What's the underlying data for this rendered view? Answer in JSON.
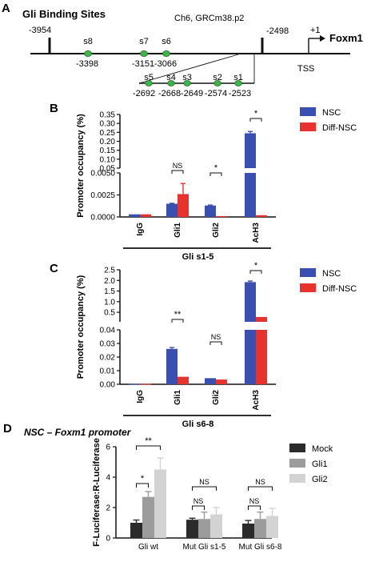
{
  "colors": {
    "blue": "#3a50b0",
    "red": "#e8322d",
    "black": "#2b2b2b",
    "gray": "#9c9c9c",
    "lightgray": "#d3d3d3",
    "green": "#3fb44a"
  },
  "panelA": {
    "letter": "A",
    "title": "Gli Binding Sites",
    "assembly": "Ch6, GRCm38.p2",
    "gene": "Foxm1",
    "plus_one": "+1",
    "tss": "TSS",
    "pos_left": "-3954",
    "pos_right": "-2498",
    "sites_upper": [
      {
        "name": "s8",
        "pos": "-3398"
      },
      {
        "name": "s7",
        "pos": "-3151"
      },
      {
        "name": "s6",
        "pos": "-3066"
      }
    ],
    "sites_lower": [
      {
        "name": "s5",
        "pos": "-2692"
      },
      {
        "name": "s4",
        "pos": "-2668"
      },
      {
        "name": "s3",
        "pos": "-2649"
      },
      {
        "name": "s2",
        "pos": "-2574"
      },
      {
        "name": "s1",
        "pos": "-2523"
      }
    ]
  },
  "chart_data": [
    {
      "panel": "B",
      "type": "bar",
      "ylabel": "Promoter occupancy (%)",
      "group_label": "Gli s1-5",
      "categories": [
        "IgG",
        "Gli1",
        "Gli2",
        "AcH3"
      ],
      "series": [
        {
          "name": "NSC",
          "values": [
            0.0003,
            0.0015,
            0.0013,
            0.245
          ],
          "errors": [
            0.0,
            5e-05,
            5e-05,
            0.01
          ]
        },
        {
          "name": "Diff-NSC",
          "values": [
            0.0003,
            0.0026,
            0.0001,
            0.0002
          ],
          "errors": [
            0.0,
            0.0012,
            0.0,
            0.0
          ]
        }
      ],
      "yticks_lower": [
        "0.0000",
        "0.0025",
        "0.0050"
      ],
      "yticks_upper": [
        "0.05",
        "0.10",
        "0.15",
        "0.20",
        "0.25",
        "0.30",
        "0.35"
      ],
      "y_break": [
        0.005,
        0.05
      ],
      "ylim": [
        0,
        0.35
      ],
      "significance": [
        "",
        "NS",
        "*",
        "*"
      ],
      "legend": "top-right"
    },
    {
      "panel": "C",
      "type": "bar",
      "ylabel": "Promoter occupancy (%)",
      "group_label": "Gli s6-8",
      "categories": [
        "IgG",
        "Gli1",
        "Gli2",
        "AcH3"
      ],
      "series": [
        {
          "name": "NSC",
          "values": [
            0.0003,
            0.026,
            0.0045,
            1.92
          ],
          "errors": [
            0.0,
            0.001,
            0.0,
            0.05
          ]
        },
        {
          "name": "Diff-NSC",
          "values": [
            0.0003,
            0.0055,
            0.0035,
            0.28
          ],
          "errors": [
            0.0,
            0.0,
            0.0,
            0.0
          ]
        }
      ],
      "yticks_lower": [
        "0.00",
        "0.01",
        "0.02",
        "0.03",
        "0.04"
      ],
      "yticks_upper": [
        "0.5",
        "1.0",
        "1.5",
        "2.0",
        "2.5"
      ],
      "y_break": [
        0.04,
        0.05
      ],
      "ylim": [
        0,
        2.5
      ],
      "significance": [
        "",
        "**",
        "NS",
        "*"
      ],
      "legend": "top-right"
    },
    {
      "panel": "D",
      "type": "bar",
      "title": "NSC – Foxm1 promoter",
      "ylabel": "F-Luciferase:R-Luciferase",
      "categories": [
        "Gli wt",
        "Mut Gli s1-5",
        "Mut Gli s6-8"
      ],
      "series": [
        {
          "name": "Mock",
          "values": [
            1.0,
            1.2,
            0.95
          ],
          "errors": [
            0.18,
            0.1,
            0.2
          ]
        },
        {
          "name": "Gli1",
          "values": [
            2.7,
            1.25,
            1.25
          ],
          "errors": [
            0.35,
            0.45,
            0.45
          ]
        },
        {
          "name": "Gli2",
          "values": [
            4.5,
            1.55,
            1.45
          ],
          "errors": [
            0.75,
            0.45,
            0.5
          ]
        }
      ],
      "yticks": [
        "0",
        "2",
        "4",
        "6"
      ],
      "ylim": [
        0,
        6
      ],
      "significance": [
        [
          "*",
          "**"
        ],
        [
          "NS",
          "NS"
        ],
        [
          "NS",
          "NS"
        ]
      ],
      "legend": "top-right"
    }
  ]
}
